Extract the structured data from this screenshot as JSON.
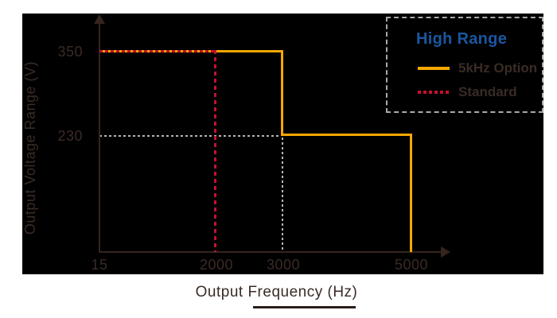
{
  "chart_data": {
    "type": "line",
    "subtype": "step",
    "title": "",
    "xlabel": "Output Frequency (Hz)",
    "ylabel": "Output Voltage Range (V)",
    "x_tick_labels": [
      "15",
      "2000",
      "3000",
      "5000"
    ],
    "y_tick_labels": [
      "350",
      "230"
    ],
    "xlim": [
      15,
      5600
    ],
    "ylim": [
      0,
      420
    ],
    "grid": false,
    "plot_background": "#000000",
    "legend": {
      "position": "top-right",
      "border_style": "dashed gray",
      "title": "High Range",
      "title_color": "#1A57A0",
      "entries": [
        {
          "label": "5kHz Option",
          "color": "#F7A800",
          "line_style": "solid"
        },
        {
          "label": "Standard",
          "color": "#C8102E",
          "line_style": "dashed"
        }
      ]
    },
    "series": [
      {
        "name": "5kHz Option",
        "color": "#F7A800",
        "line_style": "solid",
        "points_xy": [
          [
            15,
            350
          ],
          [
            3000,
            350
          ],
          [
            3000,
            230
          ],
          [
            5000,
            230
          ],
          [
            5000,
            0
          ]
        ]
      },
      {
        "name": "Standard",
        "color": "#C8102E",
        "line_style": "dashed",
        "points_xy": [
          [
            15,
            350
          ],
          [
            2000,
            350
          ],
          [
            2000,
            0
          ]
        ]
      }
    ],
    "reference_lines": [
      {
        "axis": "y",
        "value": 230,
        "extent_x": [
          15,
          3000
        ],
        "color": "#B5B5B5",
        "style": "dotted"
      },
      {
        "axis": "x",
        "value": 3000,
        "extent_y": [
          0,
          230
        ],
        "color": "#B5B5B5",
        "style": "dotted"
      }
    ]
  },
  "colors": {
    "page_background": "#FFFFFF",
    "plot_background": "#000000",
    "axis_and_text": "#3A2B25",
    "series_option": "#F7A800",
    "series_standard": "#C8102E",
    "legend_title_blue": "#1A57A0",
    "guide_gray": "#B5B5B5"
  }
}
